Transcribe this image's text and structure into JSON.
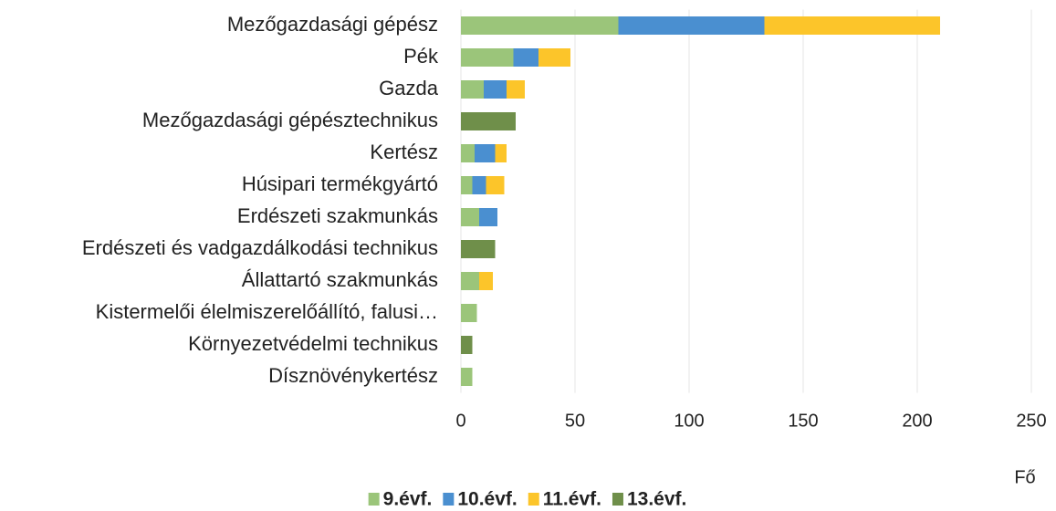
{
  "chart_data": {
    "type": "stacked-barh",
    "categories": [
      "Mezőgazdasági gépész",
      "Pék",
      "Gazda",
      "Mezőgazdasági gépésztechnikus",
      "Kertész",
      "Húsipari termékgyártó",
      "Erdészeti szakmunkás",
      "Erdészeti és vadgazdálkodási technikus",
      "Állattartó szakmunkás",
      "Kistermelői élelmiszerelőállító, falusi…",
      "Környezetvédelmi technikus",
      "Dísznövénykertész"
    ],
    "series": [
      {
        "name": "9.évf.",
        "color": "#9bc57a",
        "values": [
          69,
          23,
          10,
          null,
          6,
          5,
          8,
          null,
          8,
          7,
          null,
          5
        ]
      },
      {
        "name": "10.évf.",
        "color": "#4a8fd0",
        "values": [
          64,
          11,
          10,
          null,
          9,
          6,
          8,
          null,
          null,
          null,
          null,
          null
        ]
      },
      {
        "name": "11.évf.",
        "color": "#fcc52a",
        "values": [
          77,
          14,
          8,
          null,
          5,
          8,
          null,
          null,
          6,
          null,
          null,
          null
        ]
      },
      {
        "name": "13.évf.",
        "color": "#6f8f4a",
        "values": [
          null,
          null,
          null,
          24,
          null,
          null,
          null,
          15,
          null,
          null,
          5,
          null
        ]
      }
    ],
    "xlim": [
      0,
      250
    ],
    "xticks": [
      0,
      50,
      100,
      150,
      200,
      250
    ],
    "xlabel": "Fő",
    "grid": true,
    "legend": "bottom"
  }
}
